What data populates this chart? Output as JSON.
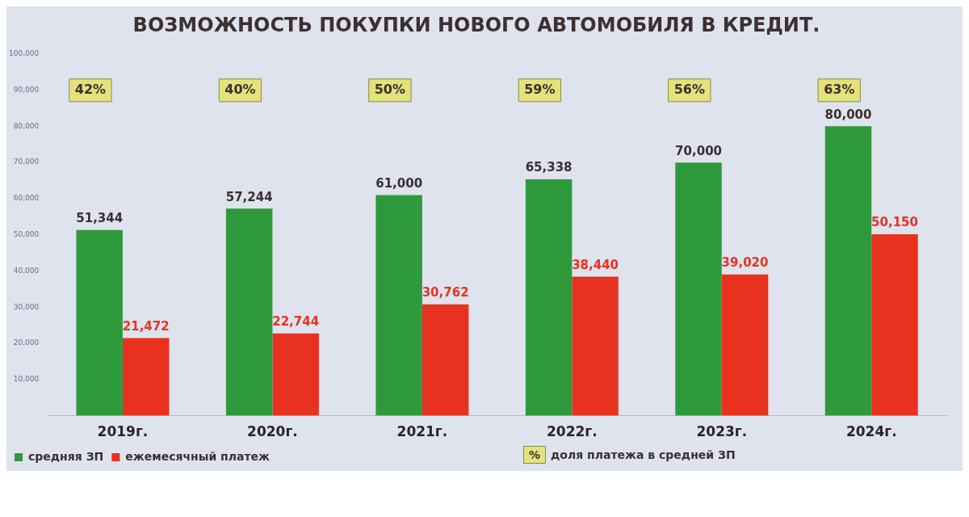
{
  "chart_data": {
    "type": "bar",
    "title": "ВОЗМОЖНОСТЬ ПОКУПКИ НОВОГО АВТОМОБИЛЯ В КРЕДИТ.",
    "categories": [
      "2019г.",
      "2020г.",
      "2021г.",
      "2022г.",
      "2023г.",
      "2024г."
    ],
    "series": [
      {
        "name": "средняя ЗП",
        "color": "#2e9a3c",
        "values": [
          51344,
          57244,
          61000,
          65338,
          70000,
          80000
        ],
        "value_labels": [
          "51,344",
          "57,244",
          "61,000",
          "65,338",
          "70,000",
          "80,000"
        ]
      },
      {
        "name": "ежемесячный платеж",
        "color": "#e8321f",
        "values": [
          21472,
          22744,
          30762,
          38440,
          39020,
          50150
        ],
        "value_labels": [
          "21,472",
          "22,744",
          "30,762",
          "38,440",
          "39,020",
          "50,150"
        ]
      }
    ],
    "ylim": [
      0,
      100000
    ],
    "yticks": [
      {
        "value": 10000,
        "label": "10,000"
      },
      {
        "value": 20000,
        "label": "20,000"
      },
      {
        "value": 30000,
        "label": "30,000"
      },
      {
        "value": 40000,
        "label": "40,000"
      },
      {
        "value": 50000,
        "label": "50,000"
      },
      {
        "value": 60000,
        "label": "60,000"
      },
      {
        "value": 70000,
        "label": "70,000"
      },
      {
        "value": 80000,
        "label": "80,000"
      },
      {
        "value": 90000,
        "label": "90,000"
      },
      {
        "value": 100000,
        "label": "100,000"
      }
    ],
    "legend": "bottom",
    "annotations": [
      "42%",
      "40%",
      "50%",
      "59%",
      "56%",
      "63%",
      "%",
      "доля платежа в средней ЗП"
    ]
  }
}
